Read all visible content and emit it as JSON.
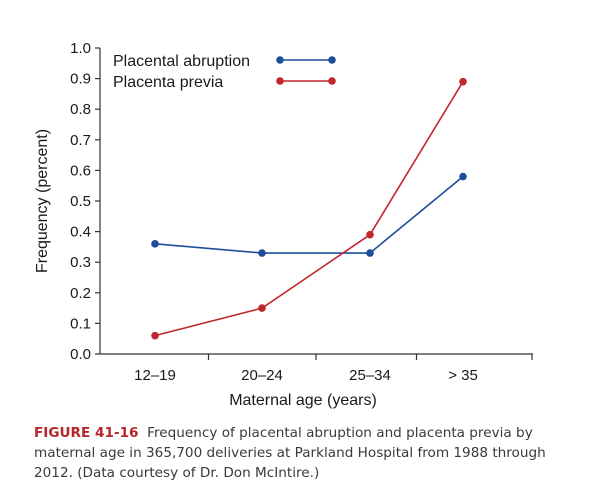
{
  "chart_data": {
    "type": "line",
    "categories": [
      "12–19",
      "20–24",
      "25–34",
      "> 35"
    ],
    "series": [
      {
        "name": "Placental abruption",
        "values": [
          0.36,
          0.33,
          0.33,
          0.58
        ],
        "color": "#1f4e9c"
      },
      {
        "name": "Placenta previa",
        "values": [
          0.06,
          0.15,
          0.39,
          0.89
        ],
        "color": "#c0272d"
      }
    ],
    "xlabel": "Maternal age (years)",
    "ylabel": "Frequency (percent)",
    "ylim": [
      0,
      1.0
    ],
    "yticks": [
      "0.0",
      "0.1",
      "0.2",
      "0.3",
      "0.4",
      "0.5",
      "0.6",
      "0.7",
      "0.8",
      "0.9",
      "1.0"
    ],
    "grid": false,
    "legend_position": "top-left"
  },
  "caption": {
    "label": "FIGURE 41-16",
    "text": "Frequency of placental abruption and placenta previa by maternal age in 365,700 deliveries at Parkland Hospital from 1988 through 2012. (Data courtesy of Dr. Don McIntire.)"
  }
}
